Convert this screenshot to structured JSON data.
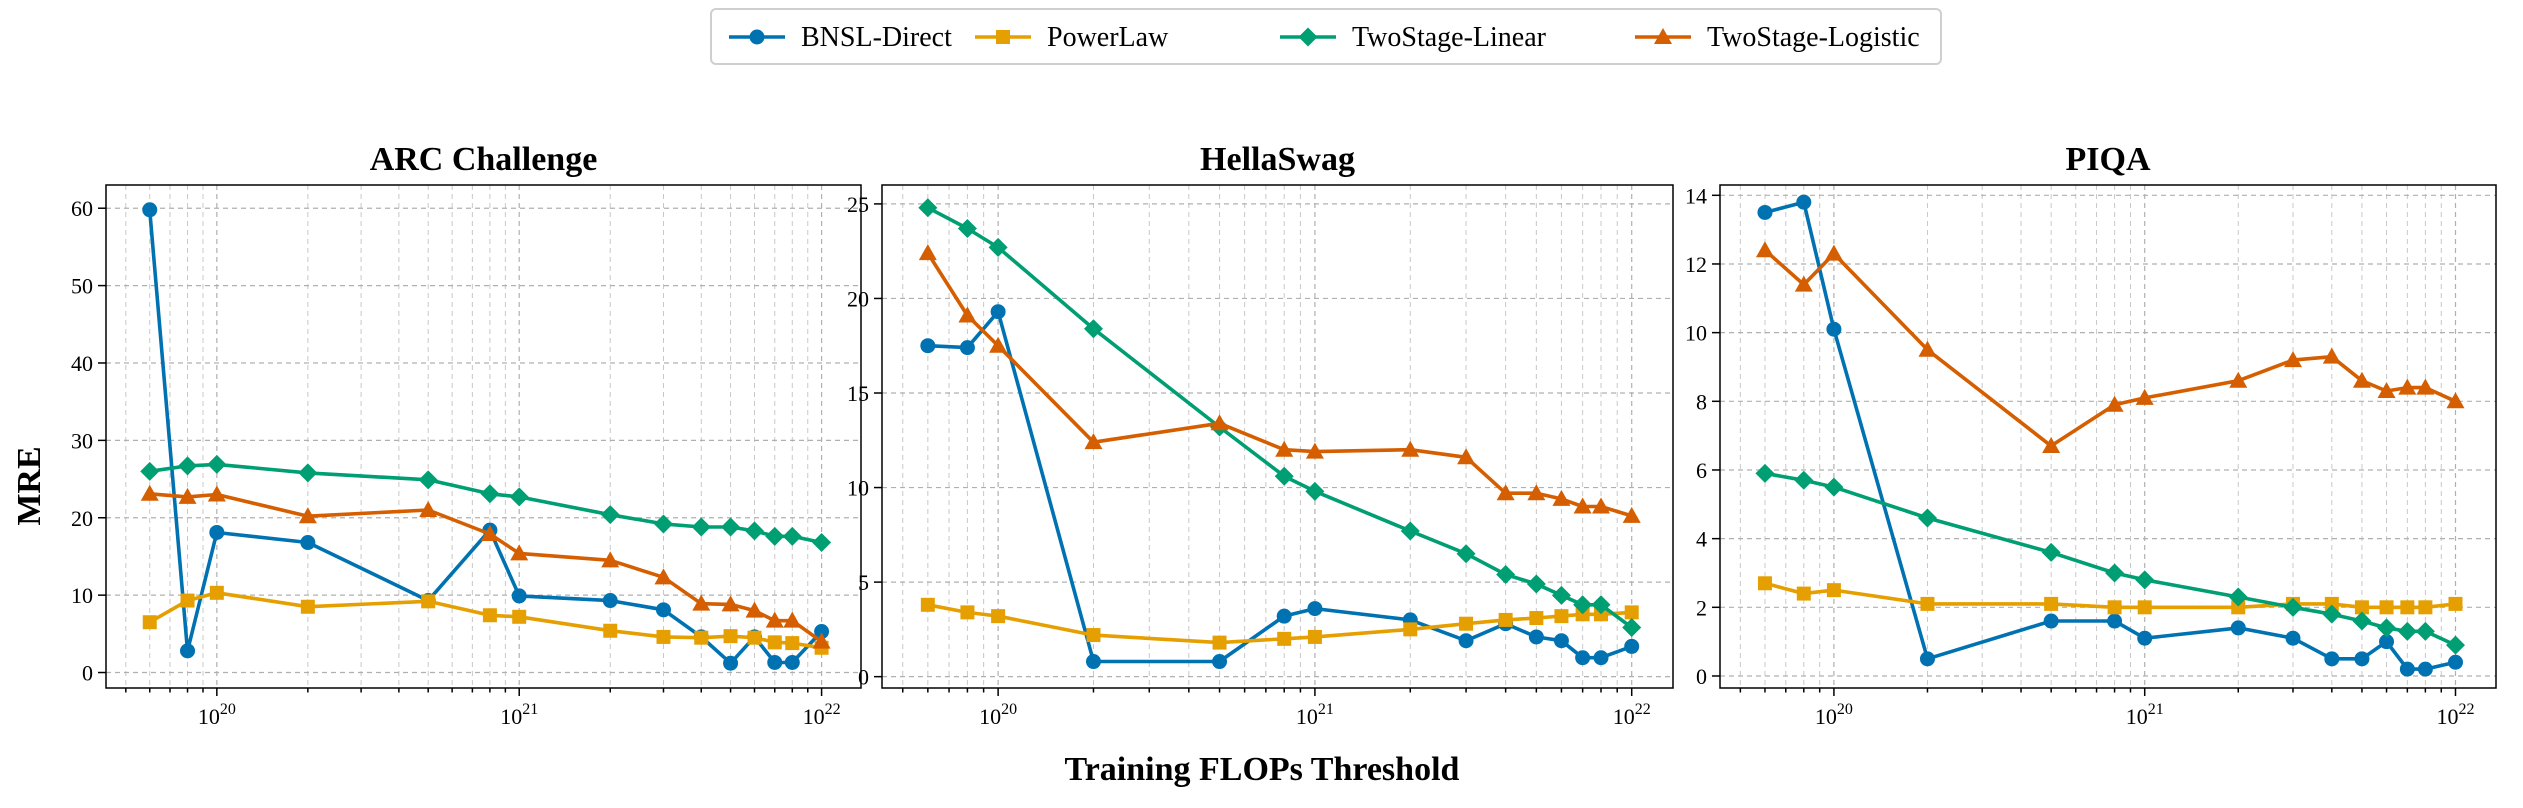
{
  "legend": [
    {
      "name": "BNSL-Direct",
      "color": "#0072B2",
      "marker": "circle"
    },
    {
      "name": "PowerLaw",
      "color": "#E69F00",
      "marker": "square"
    },
    {
      "name": "TwoStage-Linear",
      "color": "#009E73",
      "marker": "diamond"
    },
    {
      "name": "TwoStage-Logistic",
      "color": "#D55E00",
      "marker": "triangle"
    }
  ],
  "xlabel": "Training FLOPs Threshold",
  "ylabel": "MRE",
  "chart_data": [
    {
      "type": "line",
      "title": "ARC Challenge",
      "x": [
        6e+19,
        8e+19,
        1e+20,
        2e+20,
        5e+20,
        8e+20,
        1e+21,
        2e+21,
        3e+21,
        4e+21,
        5e+21,
        6e+21,
        7e+21,
        8e+21,
        1e+22
      ],
      "xscale": "log",
      "xlim": [
        4.3e+19,
        1.35e+22
      ],
      "ylim": [
        -2,
        63
      ],
      "yticks": [
        0,
        10,
        20,
        30,
        40,
        50,
        60
      ],
      "xtick_labels": [
        "10^20",
        "10^21",
        "10^22"
      ],
      "series": [
        {
          "name": "BNSL-Direct",
          "values": [
            59.8,
            2.8,
            18.1,
            16.8,
            9.3,
            18.4,
            9.9,
            9.3,
            8.1,
            4.6,
            1.2,
            4.6,
            1.3,
            1.3,
            5.3
          ]
        },
        {
          "name": "PowerLaw",
          "values": [
            6.5,
            9.3,
            10.3,
            8.5,
            9.2,
            7.4,
            7.2,
            5.4,
            4.6,
            4.5,
            4.7,
            4.5,
            3.9,
            3.8,
            3.2
          ]
        },
        {
          "name": "TwoStage-Linear",
          "values": [
            26.0,
            26.7,
            26.9,
            25.8,
            24.9,
            23.1,
            22.7,
            20.4,
            19.2,
            18.8,
            18.8,
            18.3,
            17.6,
            17.6,
            16.8
          ]
        },
        {
          "name": "TwoStage-Logistic",
          "values": [
            23.1,
            22.7,
            23.0,
            20.2,
            21.0,
            17.9,
            15.4,
            14.5,
            12.3,
            8.9,
            8.8,
            8.0,
            6.7,
            6.7,
            4.0
          ]
        }
      ]
    },
    {
      "type": "line",
      "title": "HellaSwag",
      "x": [
        6e+19,
        8e+19,
        1e+20,
        2e+20,
        5e+20,
        8e+20,
        1e+21,
        2e+21,
        3e+21,
        4e+21,
        5e+21,
        6e+21,
        7e+21,
        8e+21,
        1e+22
      ],
      "xscale": "log",
      "xlim": [
        4.3e+19,
        1.35e+22
      ],
      "ylim": [
        -0.6,
        26
      ],
      "yticks": [
        0,
        5,
        10,
        15,
        20,
        25
      ],
      "xtick_labels": [
        "10^20",
        "10^21",
        "10^22"
      ],
      "series": [
        {
          "name": "BNSL-Direct",
          "values": [
            17.5,
            17.4,
            19.3,
            0.8,
            0.8,
            3.2,
            3.6,
            3.0,
            1.9,
            2.8,
            2.1,
            1.9,
            1.0,
            1.0,
            1.6
          ]
        },
        {
          "name": "PowerLaw",
          "values": [
            3.8,
            3.4,
            3.2,
            2.2,
            1.8,
            2.0,
            2.1,
            2.5,
            2.8,
            3.0,
            3.1,
            3.2,
            3.3,
            3.3,
            3.4
          ]
        },
        {
          "name": "TwoStage-Linear",
          "values": [
            24.8,
            23.7,
            22.7,
            18.4,
            13.2,
            10.6,
            9.8,
            7.7,
            6.5,
            5.4,
            4.9,
            4.3,
            3.8,
            3.8,
            2.6
          ]
        },
        {
          "name": "TwoStage-Logistic",
          "values": [
            22.4,
            19.1,
            17.5,
            12.4,
            13.4,
            12.0,
            11.9,
            12.0,
            11.6,
            9.7,
            9.7,
            9.4,
            9.0,
            9.0,
            8.5
          ]
        }
      ]
    },
    {
      "type": "line",
      "title": "PIQA",
      "x": [
        6e+19,
        8e+19,
        1e+20,
        2e+20,
        5e+20,
        8e+20,
        1e+21,
        2e+21,
        3e+21,
        4e+21,
        5e+21,
        6e+21,
        7e+21,
        8e+21,
        1e+22
      ],
      "xscale": "log",
      "xlim": [
        4.3e+19,
        1.35e+22
      ],
      "ylim": [
        -0.35,
        14.3
      ],
      "yticks": [
        0,
        2,
        4,
        6,
        8,
        10,
        12,
        14
      ],
      "xtick_labels": [
        "10^20",
        "10^21",
        "10^22"
      ],
      "series": [
        {
          "name": "BNSL-Direct",
          "values": [
            13.5,
            13.8,
            10.1,
            0.5,
            1.6,
            1.6,
            1.1,
            1.4,
            1.1,
            0.5,
            0.5,
            1.0,
            0.2,
            0.2,
            0.4
          ]
        },
        {
          "name": "PowerLaw",
          "values": [
            2.7,
            2.4,
            2.5,
            2.1,
            2.1,
            2.0,
            2.0,
            2.0,
            2.1,
            2.1,
            2.0,
            2.0,
            2.0,
            2.0,
            2.1
          ]
        },
        {
          "name": "TwoStage-Linear",
          "values": [
            5.9,
            5.7,
            5.5,
            4.6,
            3.6,
            3.0,
            2.8,
            2.3,
            2.0,
            1.8,
            1.6,
            1.4,
            1.3,
            1.3,
            0.9
          ]
        },
        {
          "name": "TwoStage-Logistic",
          "values": [
            12.4,
            11.4,
            12.3,
            9.5,
            6.7,
            7.9,
            8.1,
            8.6,
            9.2,
            9.3,
            8.6,
            8.3,
            8.4,
            8.4,
            8.0
          ]
        }
      ]
    }
  ]
}
